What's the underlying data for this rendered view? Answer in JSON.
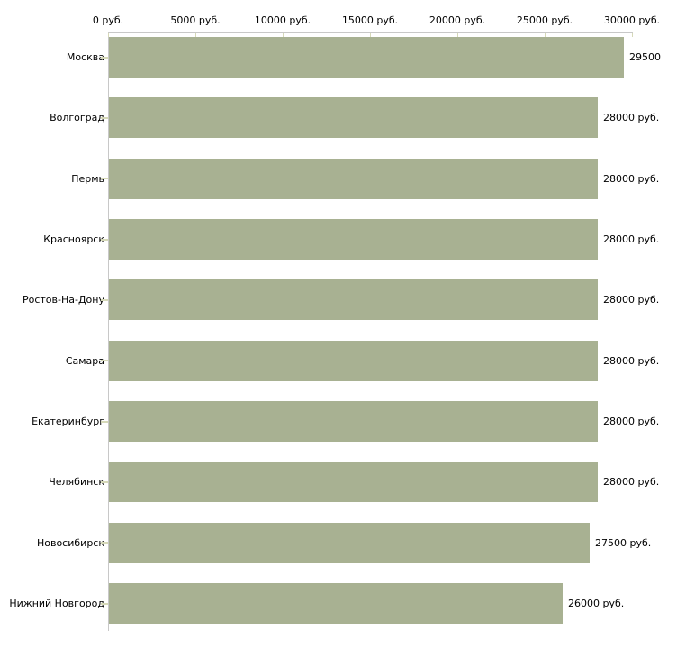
{
  "chart": {
    "background": "#ffffff",
    "bar_color": "#a8b192",
    "axis_line_color": "#c8c8c8",
    "tick_color": "#d6d9b8",
    "text_color": "#000000"
  },
  "chart_data": {
    "type": "bar",
    "orientation": "horizontal",
    "title": "",
    "xlabel": "",
    "ylabel": "",
    "axis_position": "top",
    "grid": false,
    "legend": false,
    "unit": "руб.",
    "xlim": [
      0,
      30000
    ],
    "x_tick_values": [
      0,
      5000,
      10000,
      15000,
      20000,
      25000,
      30000
    ],
    "x_tick_labels": [
      "0 руб.",
      "5000 руб.",
      "10000 руб.",
      "15000 руб.",
      "20000 руб.",
      "25000 руб.",
      "30000 руб."
    ],
    "categories": [
      "Москва",
      "Волгоград",
      "Пермь",
      "Красноярск",
      "Ростов-На-Дону",
      "Самара",
      "Екатеринбург",
      "Челябинск",
      "Новосибирск",
      "Нижний Новгород"
    ],
    "values": [
      29500,
      28000,
      28000,
      28000,
      28000,
      28000,
      28000,
      28000,
      27500,
      26000
    ],
    "value_labels": [
      "29500",
      "28000 руб.",
      "28000 руб.",
      "28000 руб.",
      "28000 руб.",
      "28000 руб.",
      "28000 руб.",
      "28000 руб.",
      "27500 руб.",
      "26000 руб."
    ]
  }
}
